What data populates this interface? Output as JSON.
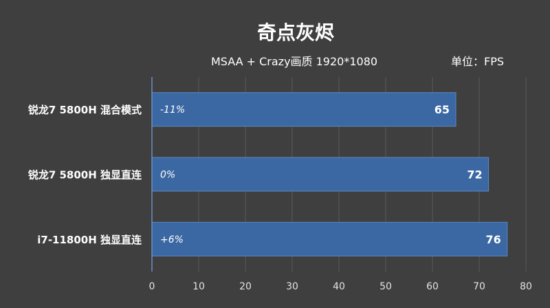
{
  "chart_data": {
    "type": "bar",
    "orientation": "horizontal",
    "title": "奇点灰烬",
    "subtitle": "MSAA + Crazy画质 1920*1080",
    "unit_label": "单位：FPS",
    "categories": [
      "锐龙7 5800H 混合模式",
      "锐龙7 5800H 独显直连",
      "i7-11800H 独显直连"
    ],
    "values": [
      65,
      72,
      76
    ],
    "bar_annotations": [
      "-11%",
      "0%",
      "+6%"
    ],
    "xlim": [
      0,
      80
    ],
    "xticks": [
      0,
      10,
      20,
      30,
      40,
      50,
      60,
      70,
      80
    ],
    "grid": true,
    "colors": {
      "background": "#3f3f3f",
      "bar": "#3b68a3",
      "bar_edge": "#5b87c6",
      "grid": "#5a5a5a",
      "axis": "#6f8fc0",
      "text": "#ffffff",
      "tick": "#e4e4e4"
    }
  }
}
